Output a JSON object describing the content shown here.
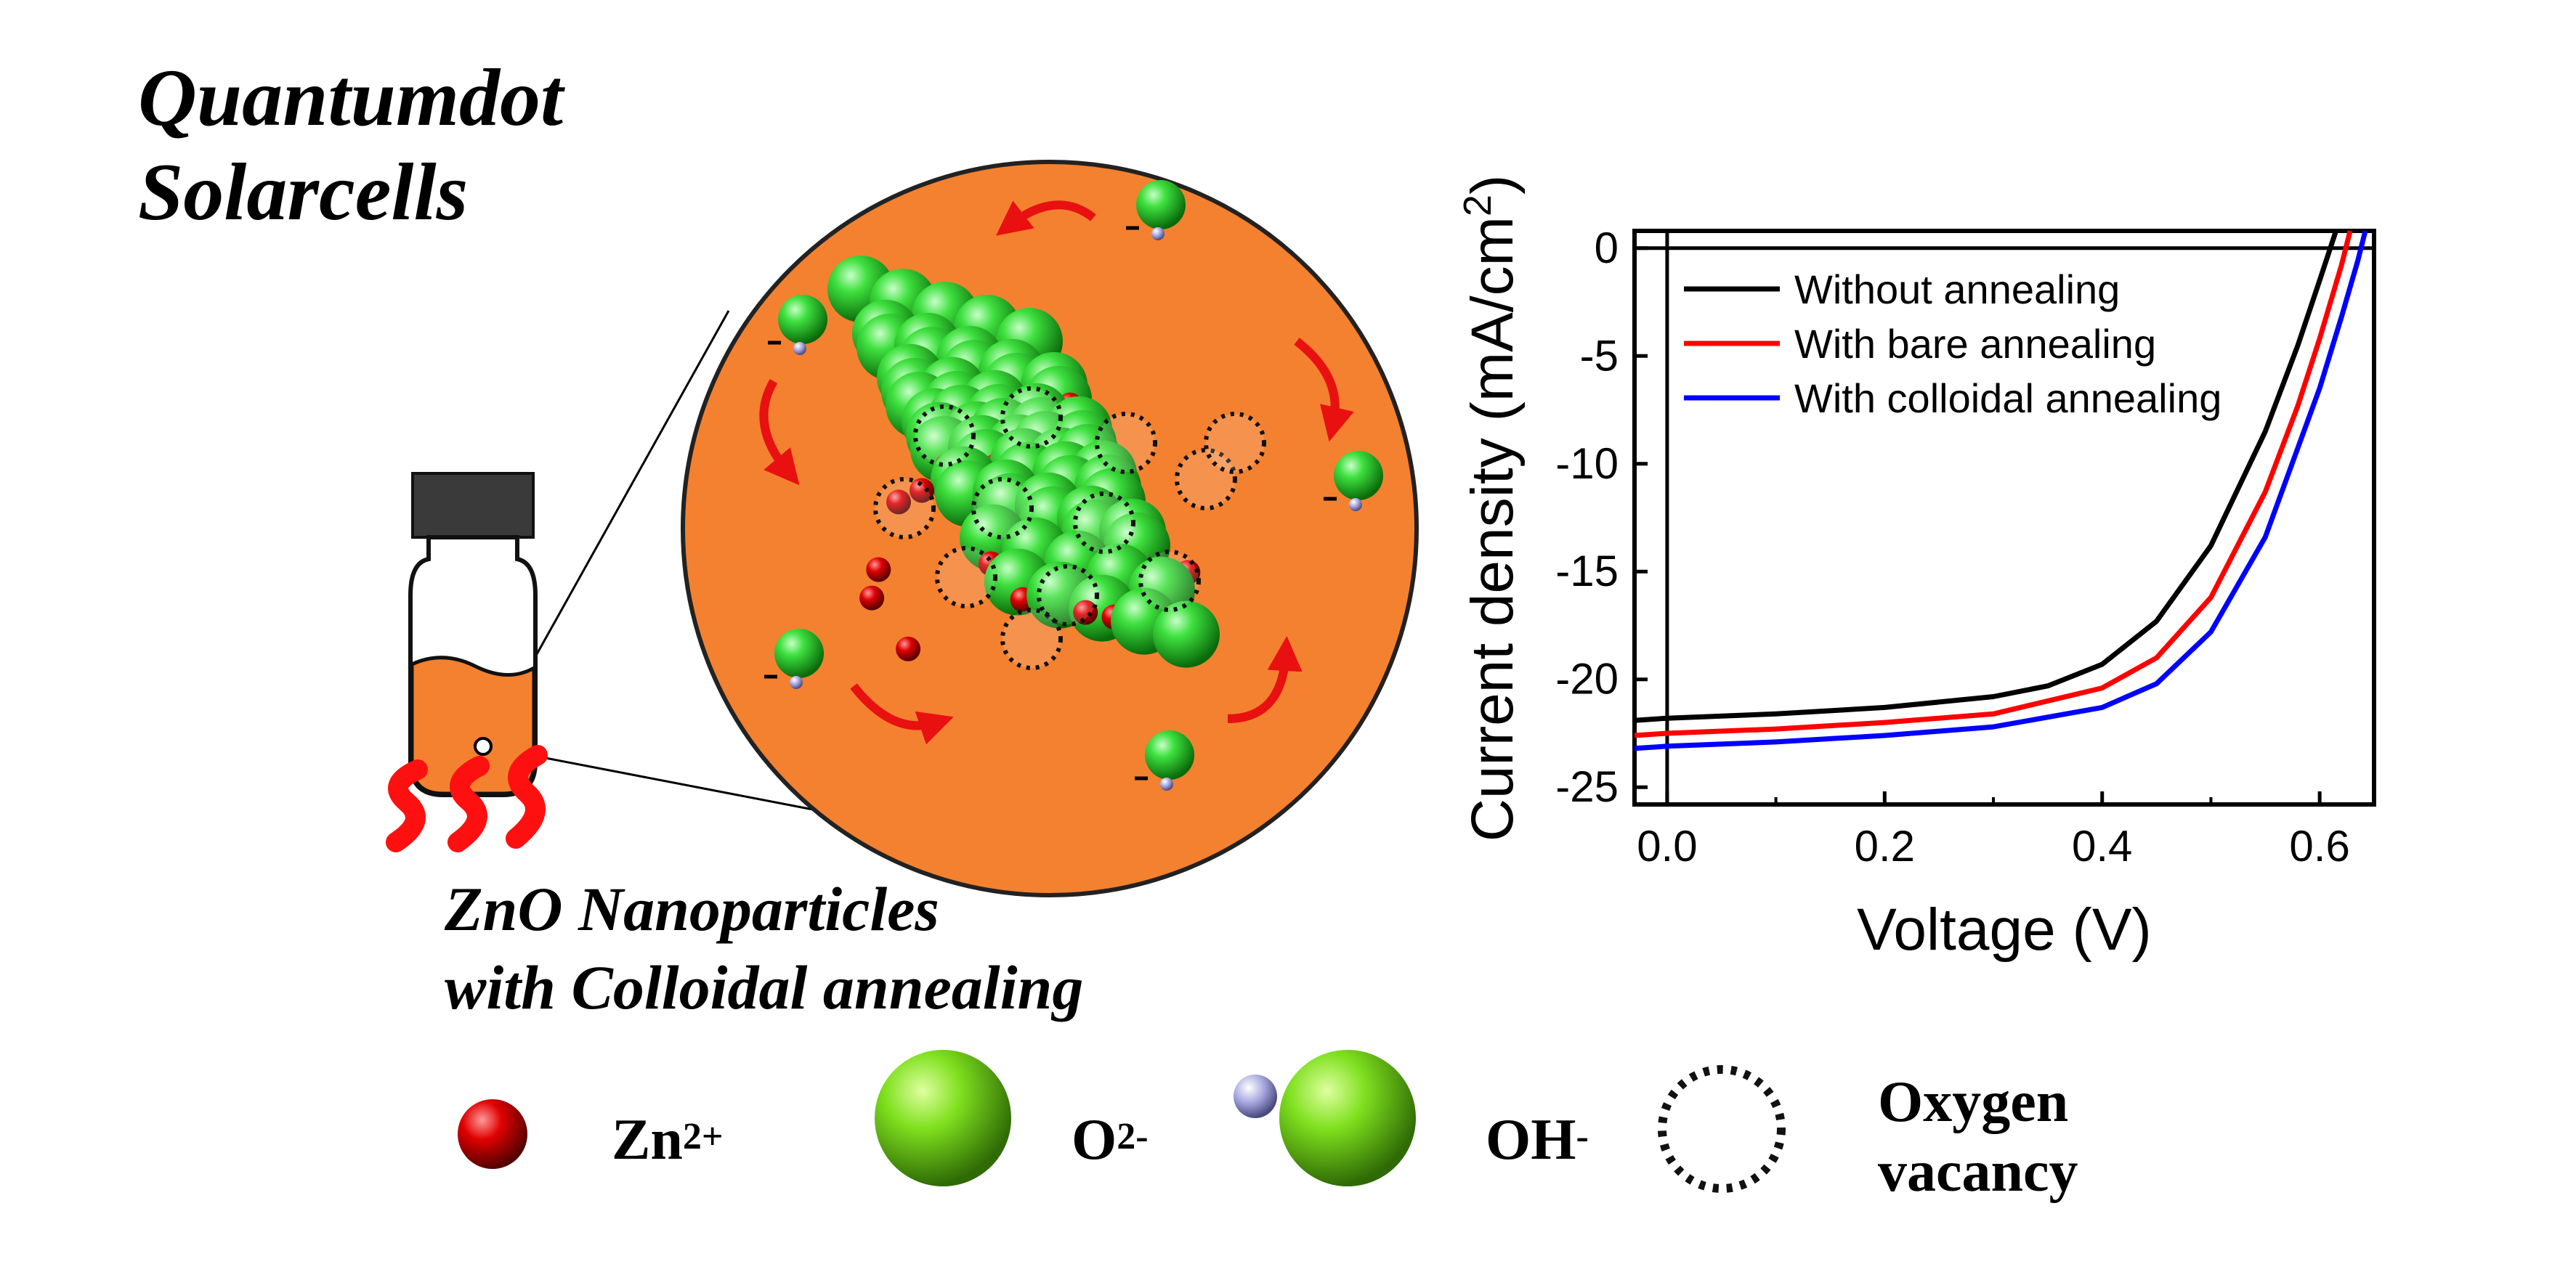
{
  "title": {
    "line1": "Quantumdot",
    "line2": "Solarcells"
  },
  "caption": {
    "line1": "ZnO Nanoparticles",
    "line2": "with Colloidal annealing"
  },
  "legend": {
    "zn": {
      "label": "Zn",
      "sup": "2+"
    },
    "o": {
      "label": "O",
      "sup": "2-"
    },
    "oh": {
      "label": "OH",
      "sup": "-"
    },
    "vacancy": {
      "line1": "Oxygen",
      "line2": "vacancy"
    }
  },
  "colors": {
    "orange": "#F4812F",
    "green": "#2EC92E",
    "red": "#E00000",
    "blue_series": "#0000FF",
    "red_series": "#FF0000",
    "black_series": "#000000"
  },
  "chart_data": {
    "type": "line",
    "xlabel": "Voltage (V)",
    "ylabel": "Current density (mA/cm",
    "ylabel_sup": "2",
    "ylabel_end": ")",
    "xlim": [
      -0.03,
      0.65
    ],
    "ylim": [
      -25.8,
      0.8
    ],
    "xticks": [
      0.0,
      0.2,
      0.4,
      0.6
    ],
    "xtick_labels": [
      "0.0",
      "0.2",
      "0.4",
      "0.6"
    ],
    "yticks": [
      0,
      -5,
      -10,
      -15,
      -20,
      -25
    ],
    "ytick_labels": [
      "0",
      "-5",
      "-10",
      "-15",
      "-20",
      "-25"
    ],
    "legend_position": "top-left",
    "series": [
      {
        "name": "Without annealing",
        "color": "#000000",
        "x": [
          -0.03,
          0.0,
          0.1,
          0.2,
          0.3,
          0.35,
          0.4,
          0.45,
          0.5,
          0.55,
          0.58,
          0.6,
          0.615
        ],
        "y": [
          -21.9,
          -21.8,
          -21.6,
          -21.3,
          -20.8,
          -20.3,
          -19.3,
          -17.3,
          -13.8,
          -8.5,
          -4.5,
          -1.5,
          0.8
        ]
      },
      {
        "name": "With bare annealing",
        "color": "#FF0000",
        "x": [
          -0.03,
          0.0,
          0.1,
          0.2,
          0.3,
          0.4,
          0.45,
          0.5,
          0.55,
          0.58,
          0.6,
          0.62,
          0.628
        ],
        "y": [
          -22.6,
          -22.5,
          -22.3,
          -22.0,
          -21.6,
          -20.4,
          -19.0,
          -16.2,
          -11.3,
          -7.3,
          -4.2,
          -0.8,
          0.8
        ]
      },
      {
        "name": "With colloidal annealing",
        "color": "#0000FF",
        "x": [
          -0.03,
          0.0,
          0.1,
          0.2,
          0.3,
          0.4,
          0.45,
          0.5,
          0.55,
          0.6,
          0.62,
          0.635,
          0.642
        ],
        "y": [
          -23.2,
          -23.1,
          -22.9,
          -22.6,
          -22.2,
          -21.3,
          -20.2,
          -17.8,
          -13.4,
          -6.5,
          -3.2,
          -0.6,
          0.8
        ]
      }
    ]
  }
}
